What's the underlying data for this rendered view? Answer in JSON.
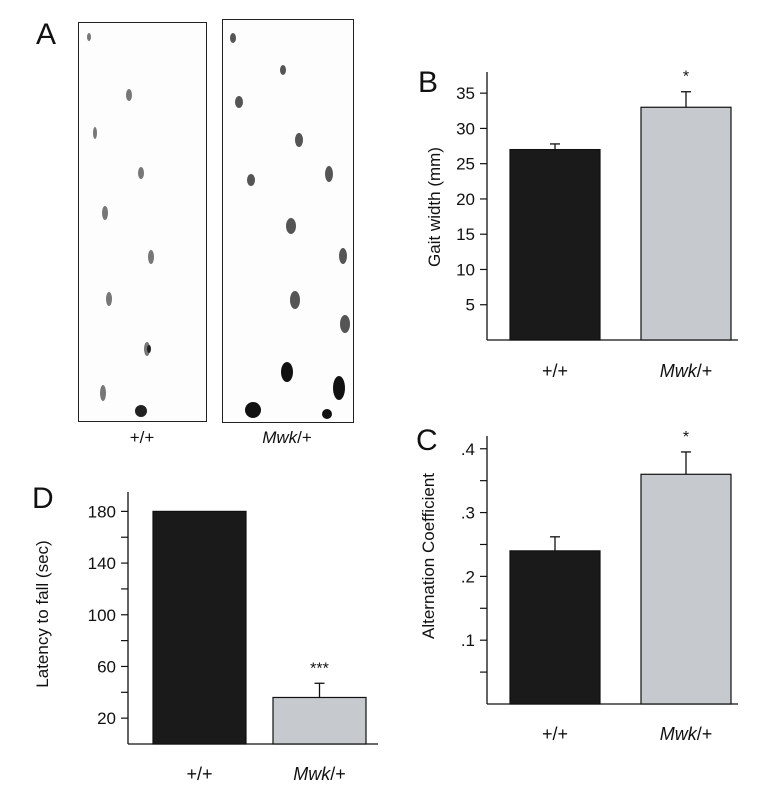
{
  "figure": {
    "panel_a": {
      "letter": "A",
      "strips": [
        {
          "label_plain": "+/+",
          "label_italic": "",
          "label_suffix": ""
        },
        {
          "label_plain": "",
          "label_italic": "Mwk",
          "label_suffix": "/+"
        }
      ]
    }
  },
  "chart_data": [
    {
      "panel": "B",
      "type": "bar",
      "categories": [
        "+/+",
        "Mwk/+"
      ],
      "category_italic": [
        "",
        "Mwk"
      ],
      "category_suffix": [
        "",
        "/+"
      ],
      "values": [
        27,
        33
      ],
      "errors": [
        0.8,
        2.2
      ],
      "significance": [
        "",
        "*"
      ],
      "bar_colors": [
        "#1a1a1a",
        "#c6cacf"
      ],
      "ylabel": "Gait width (mm)",
      "ylim": [
        0,
        38
      ],
      "yticks": [
        5,
        10,
        15,
        20,
        25,
        30,
        35
      ],
      "ytick_labels": [
        "5",
        "10",
        "15",
        "20",
        "25",
        "30",
        "35"
      ],
      "title": "",
      "xlabel": "",
      "grid": false
    },
    {
      "panel": "C",
      "type": "bar",
      "categories": [
        "+/+",
        "Mwk/+"
      ],
      "category_italic": [
        "",
        "Mwk"
      ],
      "category_suffix": [
        "",
        "/+"
      ],
      "values": [
        0.24,
        0.36
      ],
      "errors": [
        0.022,
        0.035
      ],
      "significance": [
        "",
        "*"
      ],
      "bar_colors": [
        "#1a1a1a",
        "#c6cacf"
      ],
      "ylabel": "Alternation Coefficient",
      "ylim": [
        0,
        0.42
      ],
      "yticks": [
        0.1,
        0.2,
        0.3,
        0.4
      ],
      "ytick_labels": [
        ".1",
        ".2",
        ".3",
        ".4"
      ],
      "minor_ticks": [
        0.05,
        0.15,
        0.25,
        0.35
      ],
      "title": "",
      "xlabel": "",
      "grid": false
    },
    {
      "panel": "D",
      "type": "bar",
      "categories": [
        "+/+",
        "Mwk/+"
      ],
      "category_italic": [
        "",
        "Mwk"
      ],
      "category_suffix": [
        "",
        "/+"
      ],
      "values": [
        180,
        36
      ],
      "errors": [
        0,
        11
      ],
      "significance": [
        "",
        "***"
      ],
      "bar_colors": [
        "#1a1a1a",
        "#c6cacf"
      ],
      "ylabel": "Latency to fall (sec)",
      "ylim": [
        0,
        195
      ],
      "yticks": [
        20,
        60,
        100,
        140,
        180
      ],
      "ytick_labels": [
        "20",
        "60",
        "100",
        "140",
        "180"
      ],
      "minor_ticks": [
        40,
        80,
        120,
        160
      ],
      "title": "",
      "xlabel": "",
      "grid": false
    }
  ]
}
